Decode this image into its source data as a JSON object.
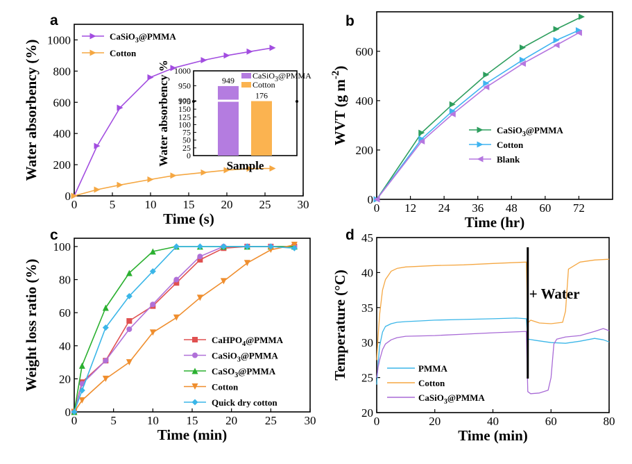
{
  "chart_data": [
    {
      "panel": "a",
      "type": "line",
      "xlabel": "Time (s)",
      "ylabel": "Water absorbency (%)",
      "xlim": [
        0,
        30
      ],
      "ylim": [
        0,
        1100
      ],
      "xticks": [
        0,
        5,
        10,
        15,
        20,
        25,
        30
      ],
      "yticks": [
        0,
        200,
        400,
        600,
        800,
        1000
      ],
      "series": [
        {
          "name": "CaSiO3@PMMA",
          "name_base": "CaSiO",
          "name_sub": "3",
          "name_tail": "@PMMA",
          "color": "#a24de0",
          "marker": "triangle-right",
          "x": [
            0,
            3,
            6,
            10,
            13,
            17,
            20,
            23,
            26
          ],
          "y": [
            0,
            320,
            565,
            760,
            820,
            870,
            900,
            925,
            949
          ]
        },
        {
          "name": "Cotton",
          "color": "#f5a742",
          "marker": "triangle-right",
          "x": [
            0,
            3,
            6,
            10,
            13,
            17,
            20,
            23,
            26
          ],
          "y": [
            0,
            40,
            70,
            105,
            130,
            150,
            165,
            175,
            176
          ]
        }
      ],
      "inset": {
        "type": "bar",
        "xlabel": "Sample",
        "ylabel": "Water absorbency %",
        "ylim_lower": [
          0,
          175
        ],
        "ylim_upper": [
          900,
          1000
        ],
        "yticks": [
          0,
          25,
          50,
          75,
          100,
          125,
          150,
          175,
          900,
          950,
          1000
        ],
        "categories": [
          "CaSiO3@PMMA",
          "Cotton"
        ],
        "values": [
          949,
          176
        ],
        "value_labels": [
          "949",
          "176"
        ],
        "colors": [
          "#b47ce0",
          "#fbb350"
        ]
      }
    },
    {
      "panel": "b",
      "type": "line",
      "xlabel": "Time (hr)",
      "ylabel_base": "WVT (g m",
      "ylabel_sup": "-2",
      "ylabel_end": ")",
      "xlim": [
        0,
        84
      ],
      "ylim": [
        0,
        760
      ],
      "xticks": [
        0,
        12,
        24,
        36,
        48,
        60,
        72
      ],
      "yticks": [
        0,
        200,
        400,
        600
      ],
      "series": [
        {
          "name": "CaSiO3@PMMA",
          "name_base": "CaSiO",
          "name_sub": "3",
          "name_tail": "@PMMA",
          "color": "#2e9e5e",
          "marker": "triangle-right",
          "x": [
            0,
            16,
            27,
            39,
            52,
            64,
            73
          ],
          "y": [
            0,
            270,
            385,
            505,
            615,
            690,
            740
          ]
        },
        {
          "name": "Cotton",
          "color": "#3fb4f0",
          "marker": "triangle-right",
          "x": [
            0,
            16,
            27,
            39,
            52,
            64,
            72
          ],
          "y": [
            0,
            245,
            358,
            470,
            565,
            645,
            685
          ]
        },
        {
          "name": "Blank",
          "color": "#b577e0",
          "marker": "triangle-left",
          "x": [
            0,
            16,
            27,
            39,
            52,
            64,
            72
          ],
          "y": [
            0,
            235,
            345,
            455,
            550,
            625,
            675
          ]
        }
      ]
    },
    {
      "panel": "c",
      "type": "line",
      "xlabel": "Time (min)",
      "ylabel": "Weight loss ratio (%)",
      "xlim": [
        0,
        30
      ],
      "ylim": [
        0,
        105
      ],
      "xticks": [
        0,
        5,
        10,
        15,
        20,
        25,
        30
      ],
      "yticks": [
        0,
        20,
        40,
        60,
        80,
        100
      ],
      "series": [
        {
          "name": "CaHPO4@PMMA",
          "name_base": "CaHPO",
          "name_sub": "4",
          "name_tail": "@PMMA",
          "color": "#e05050",
          "marker": "square",
          "x": [
            0,
            1,
            4,
            7,
            10,
            13,
            16,
            19,
            22,
            25,
            28
          ],
          "y": [
            0,
            18,
            31,
            55,
            64,
            78,
            92,
            99,
            100,
            100,
            100
          ]
        },
        {
          "name": "CaSiO3@PMMA",
          "name_base": "CaSiO",
          "name_sub": "3",
          "name_tail": "@PMMA",
          "color": "#b070d8",
          "marker": "circle",
          "x": [
            0,
            1,
            4,
            7,
            10,
            13,
            16,
            19,
            22,
            25,
            28
          ],
          "y": [
            0,
            17,
            31,
            50,
            65,
            80,
            94,
            100,
            100,
            100,
            100
          ]
        },
        {
          "name": "CaSO3@PMMA",
          "name_base": "CaSO",
          "name_sub": "3",
          "name_tail": "@PMMA",
          "color": "#2bb030",
          "marker": "triangle-up",
          "x": [
            0,
            1,
            4,
            7,
            10,
            13,
            16,
            19,
            22,
            25,
            28
          ],
          "y": [
            0,
            28,
            63,
            84,
            97,
            100,
            100,
            100,
            100,
            100,
            100
          ]
        },
        {
          "name": "Cotton",
          "color": "#ef8e2e",
          "marker": "triangle-down",
          "x": [
            0,
            1,
            4,
            7,
            10,
            13,
            16,
            19,
            22,
            25,
            28
          ],
          "y": [
            0,
            7,
            20,
            30,
            48,
            57,
            69,
            79,
            90,
            98,
            101
          ]
        },
        {
          "name": "Quick dry cotton",
          "color": "#3ab6e8",
          "marker": "diamond",
          "x": [
            0,
            1,
            4,
            7,
            10,
            13,
            16,
            19,
            22,
            25,
            28
          ],
          "y": [
            0,
            13,
            51,
            70,
            85,
            100,
            100,
            100,
            100,
            100,
            99
          ]
        }
      ]
    },
    {
      "panel": "d",
      "type": "line",
      "xlabel": "Time (min)",
      "ylabel": "Temperature (°C)",
      "xlim": [
        0,
        80
      ],
      "ylim": [
        20,
        45
      ],
      "xticks": [
        0,
        20,
        40,
        60,
        80
      ],
      "yticks": [
        20,
        25,
        30,
        35,
        40,
        45
      ],
      "annotation": "+ Water",
      "annotation_x": 52,
      "series": [
        {
          "name": "PMMA",
          "color": "#3ab6e8",
          "x": [
            0,
            0.5,
            1,
            2,
            3,
            5,
            7,
            10,
            15,
            20,
            30,
            40,
            48,
            51.5,
            52,
            55,
            60,
            65,
            70,
            75,
            78,
            80
          ],
          "y": [
            24,
            27,
            29.5,
            31.5,
            32.3,
            32.7,
            32.9,
            33.0,
            33.1,
            33.2,
            33.3,
            33.4,
            33.5,
            33.4,
            30.5,
            30.3,
            30.0,
            29.9,
            30.2,
            30.6,
            30.4,
            30.1
          ]
        },
        {
          "name": "Cotton",
          "color": "#f5a742",
          "x": [
            0,
            0.5,
            1,
            2,
            3,
            5,
            7,
            10,
            20,
            30,
            40,
            51.5,
            52,
            53,
            56,
            60,
            64,
            65,
            66,
            70,
            75,
            80
          ],
          "y": [
            27.5,
            31,
            34,
            37.5,
            39,
            40.2,
            40.6,
            40.8,
            41.0,
            41.1,
            41.3,
            41.5,
            32.8,
            33.2,
            32.8,
            32.7,
            32.9,
            34.5,
            40.5,
            41.5,
            41.8,
            41.9
          ]
        },
        {
          "name": "CaSiO3@PMMA",
          "name_base": "CaSiO",
          "name_sub": "3",
          "name_tail": "@PMMA",
          "color": "#a86ad6",
          "x": [
            0,
            0.5,
            1,
            2,
            3,
            5,
            7,
            10,
            20,
            30,
            40,
            51.5,
            52,
            53,
            56,
            59,
            60,
            61,
            62,
            65,
            70,
            75,
            78,
            80
          ],
          "y": [
            25,
            26.5,
            27.5,
            29,
            29.8,
            30.4,
            30.7,
            30.9,
            31.0,
            31.2,
            31.4,
            31.6,
            23,
            22.7,
            22.8,
            23.2,
            25,
            29.8,
            30.5,
            30.8,
            31.0,
            31.6,
            32.0,
            31.7
          ]
        }
      ]
    }
  ]
}
